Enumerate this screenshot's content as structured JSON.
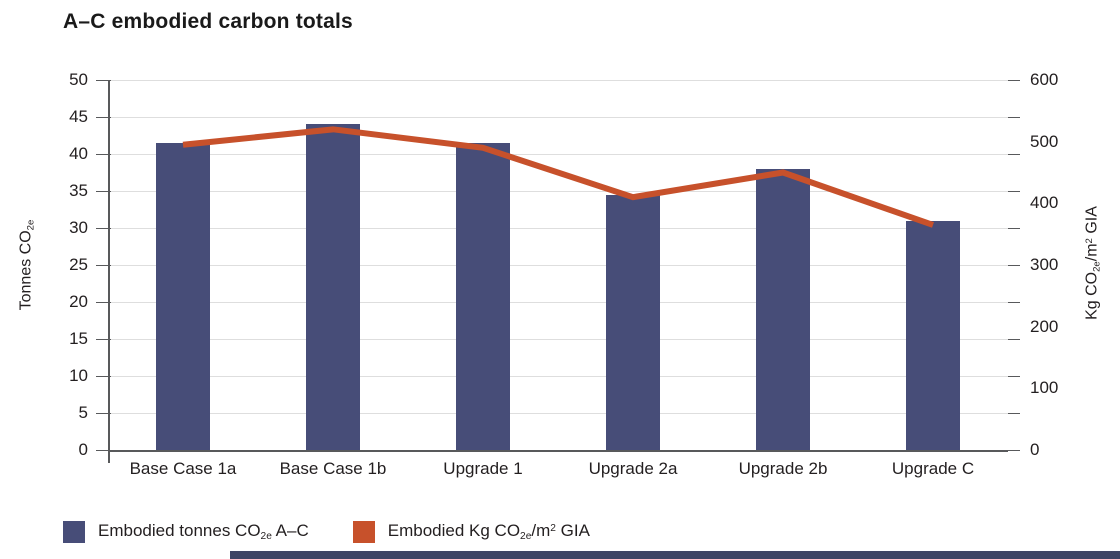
{
  "page": {
    "title": "A–C embodied carbon totals"
  },
  "chart_data": {
    "type": "bar",
    "title": "A–C embodied carbon totals",
    "categories": [
      "Base Case 1a",
      "Base Case 1b",
      "Upgrade 1",
      "Upgrade 2a",
      "Upgrade 2b",
      "Upgrade C"
    ],
    "series": [
      {
        "name": "Embodied tonnes CO2e A–C",
        "type": "bar",
        "axis": "left",
        "color": "#474d78",
        "values": [
          41.5,
          44,
          41.5,
          34.5,
          38,
          31
        ]
      },
      {
        "name": "Embodied Kg CO2e/m2 GIA",
        "type": "line",
        "axis": "right",
        "color": "#c7512b",
        "values": [
          495,
          520,
          490,
          410,
          450,
          365
        ]
      }
    ],
    "left_axis": {
      "title": "Tonnes CO2e",
      "min": 0,
      "max": 50,
      "step": 5,
      "tick_labels": [
        "50",
        "45",
        "40",
        "35",
        "30",
        "25",
        "20",
        "15",
        "10",
        "5",
        "0"
      ]
    },
    "right_axis": {
      "title": "Kg CO2e/m2 GIA",
      "min": 0,
      "max": 600,
      "step": 100,
      "tick_labels": [
        "600",
        "500",
        "400",
        "300",
        "200",
        "100",
        "0"
      ]
    },
    "grid": "horizontal gridlines at left-axis steps, on",
    "legend_position": "bottom-left"
  },
  "axes": {
    "left_title": {
      "prefix": "Tonnes CO",
      "sub": "2e"
    },
    "right_title": {
      "prefix": "Kg CO",
      "sub": "2e",
      "mid": "/m",
      "sup": "2",
      "suffix": " GIA"
    }
  },
  "legend": {
    "items": [
      {
        "color": "#474d78",
        "prefix": "Embodied tonnes CO",
        "sub": "2e",
        "suffix": " A–C"
      },
      {
        "color": "#c7512b",
        "prefix": "Embodied Kg CO",
        "sub": "2e",
        "mid": "/m",
        "sup": "2",
        "suffix": " GIA"
      }
    ]
  }
}
